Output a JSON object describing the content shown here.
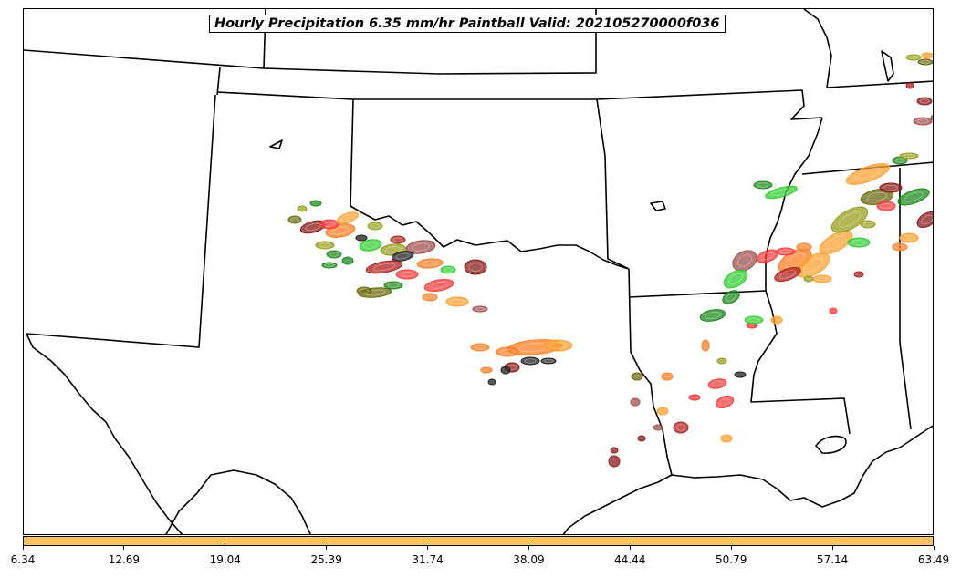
{
  "title": "Hourly Precipitation 6.35 mm/hr Paintball Valid: 202105270000f036",
  "colorbar": {
    "color": "#ffc266",
    "ticks": [
      "6.34",
      "12.69",
      "19.04",
      "25.39",
      "31.74",
      "38.09",
      "44.44",
      "50.79",
      "57.14",
      "63.49"
    ]
  },
  "member_colors": [
    "#8b1a1a",
    "#b22222",
    "#ff3b3b",
    "#ff7f24",
    "#ffa030",
    "#9aa01e",
    "#6b6b10",
    "#1e8b1e",
    "#32cd32",
    "#222222",
    "#a05050"
  ]
}
